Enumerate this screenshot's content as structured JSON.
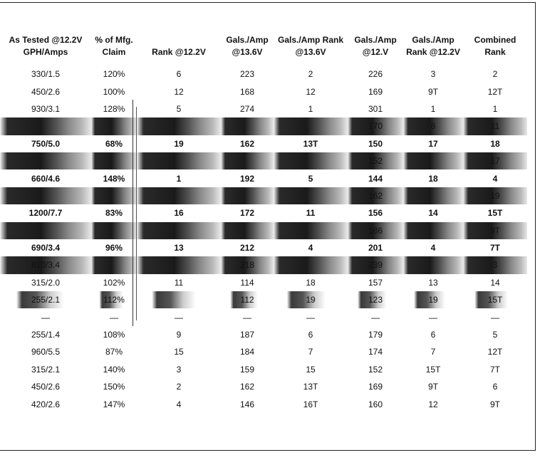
{
  "table": {
    "headers": [
      "As Tested @12.2V GPH/Amps",
      "% of Mfg. Claim",
      "Rank @12.2V",
      "Gals./Amp @13.6V",
      "Gals./Amp Rank @13.6V",
      "Gals./Amp @12.V",
      "Gals./Amp Rank @12.2V",
      "Combined Rank"
    ],
    "rows": [
      [
        "330/1.5",
        "120%",
        "6",
        "223",
        "2",
        "226",
        "3",
        "2"
      ],
      [
        "450/2.6",
        "100%",
        "12",
        "168",
        "12",
        "169",
        "9T",
        "12T"
      ],
      [
        "930/3.1",
        "128%",
        "5",
        "274",
        "1",
        "301",
        "1",
        "1"
      ],
      [
        "",
        "",
        "",
        "",
        "",
        "170",
        "8",
        "11"
      ],
      [
        "750/5.0",
        "68%",
        "19",
        "162",
        "13T",
        "150",
        "17",
        "18"
      ],
      [
        "",
        "",
        "",
        "",
        "",
        "152",
        "",
        "17"
      ],
      [
        "660/4.6",
        "148%",
        "1",
        "192",
        "5",
        "144",
        "18",
        "4"
      ],
      [
        "",
        "",
        "",
        "",
        "",
        "162",
        "",
        "19"
      ],
      [
        "1200/7.7",
        "83%",
        "16",
        "172",
        "11",
        "156",
        "14",
        "15T"
      ],
      [
        "",
        "",
        "",
        "",
        "",
        "186",
        "",
        "9T"
      ],
      [
        "690/3.4",
        "96%",
        "13",
        "212",
        "4",
        "201",
        "4",
        "7T"
      ],
      [
        "810/3.4",
        "",
        "",
        "218",
        "",
        "239",
        "",
        "3"
      ],
      [
        "315/2.0",
        "102%",
        "11",
        "114",
        "18",
        "157",
        "13",
        "14"
      ],
      [
        "255/2.1",
        "112%",
        "",
        "112",
        "19",
        "123",
        "19",
        "15T"
      ],
      [
        "—",
        "—",
        "—",
        "—",
        "—",
        "—",
        "—",
        "—"
      ],
      [
        "255/1.4",
        "108%",
        "9",
        "187",
        "6",
        "179",
        "6",
        "5"
      ],
      [
        "960/5.5",
        "87%",
        "15",
        "184",
        "7",
        "174",
        "7",
        "12T"
      ],
      [
        "315/2.1",
        "140%",
        "3",
        "159",
        "15",
        "152",
        "15T",
        "7T"
      ],
      [
        "450/2.6",
        "150%",
        "2",
        "162",
        "13T",
        "169",
        "9T",
        "6"
      ],
      [
        "420/2.6",
        "147%",
        "4",
        "146",
        "16T",
        "160",
        "12",
        "9T"
      ]
    ]
  }
}
